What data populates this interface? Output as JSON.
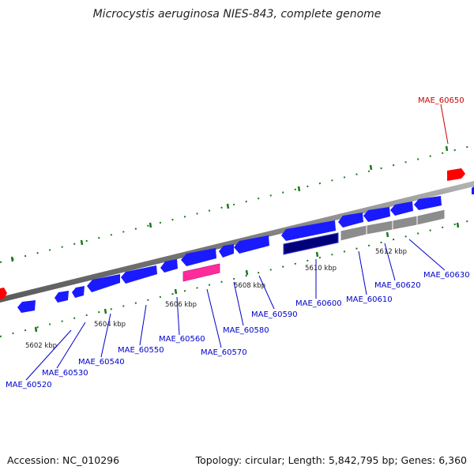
{
  "title": "Microcystis aeruginosa NIES-843, complete genome",
  "footer": {
    "accession": "Accession: NC_010296",
    "topology": "Topology: circular; Length: 5,842,795 bp; Genes: 6,360"
  },
  "scale_labels": [
    "5602 kbp",
    "5604 kbp",
    "5606 kbp",
    "5608 kbp",
    "5610 kbp",
    "5612 kbp"
  ],
  "gene_labels": [
    "MAE_60520",
    "MAE_60530",
    "MAE_60540",
    "MAE_60550",
    "MAE_60560",
    "MAE_60570",
    "MAE_60580",
    "MAE_60590",
    "MAE_60600",
    "MAE_60610",
    "MAE_60620",
    "MAE_60630",
    "MAE_60650"
  ],
  "colors": {
    "cds": "#1a1aff",
    "rna": "#ff2a9c",
    "dark_cds": "#00007a",
    "pseudo": "#8c8c8c",
    "other": "#ff0000",
    "ticks": "#1a7a1a",
    "backbone": "#808080",
    "label": "#0000cc",
    "label_red": "#cc0000"
  }
}
